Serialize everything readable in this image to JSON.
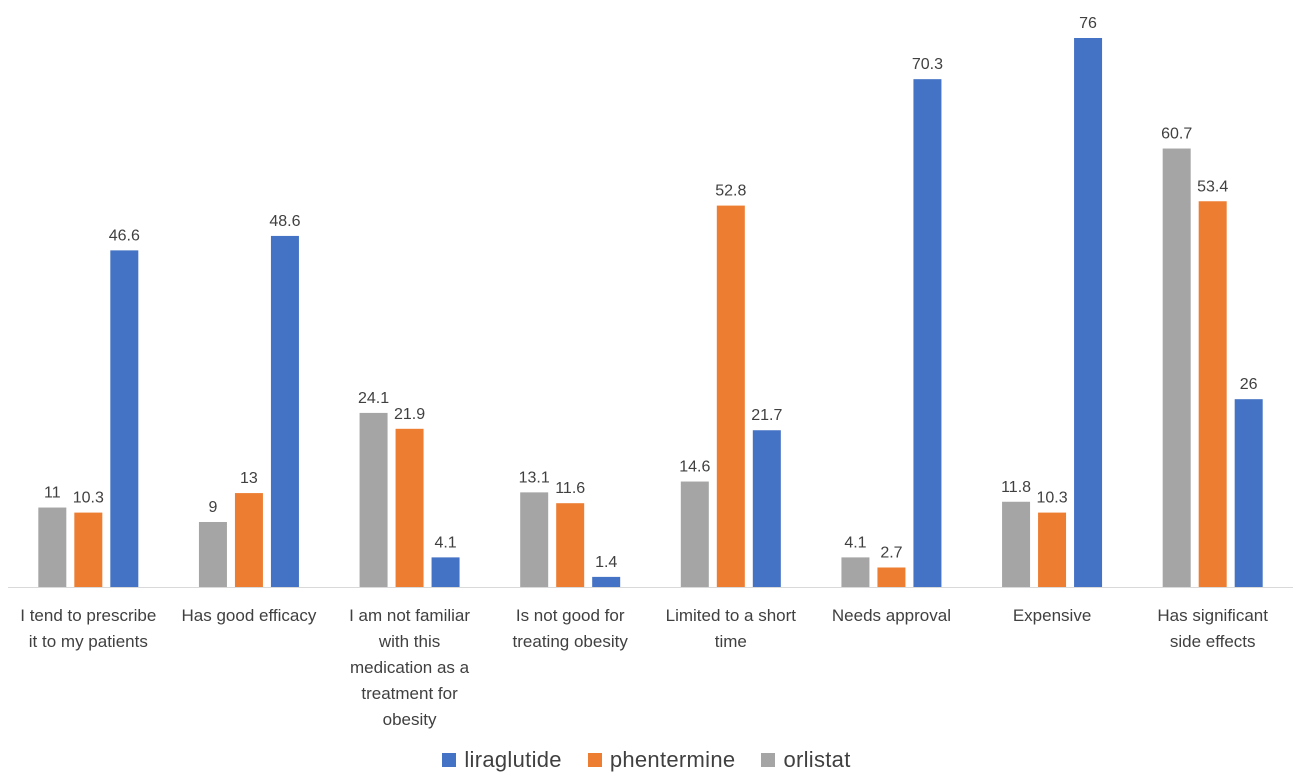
{
  "chart_data": {
    "type": "bar",
    "categories": [
      [
        "I tend to prescribe",
        "it to my patients"
      ],
      [
        "Has good efficacy"
      ],
      [
        "I am not familiar",
        "with this",
        "medication as a",
        "treatment for",
        "obesity"
      ],
      [
        "Is not good for",
        "treating obesity"
      ],
      [
        "Limited to a short",
        "time"
      ],
      [
        "Needs approval"
      ],
      [
        "Expensive"
      ],
      [
        "Has significant",
        "side effects"
      ]
    ],
    "series": [
      {
        "name": "orlistat",
        "color": "#A5A5A5",
        "values": [
          11,
          9,
          24.1,
          13.1,
          14.6,
          4.1,
          11.8,
          60.7
        ]
      },
      {
        "name": "phentermine",
        "color": "#ED7D31",
        "values": [
          10.3,
          13,
          21.9,
          11.6,
          52.8,
          2.7,
          10.3,
          53.4
        ]
      },
      {
        "name": "liraglutide",
        "color": "#4472C4",
        "values": [
          46.6,
          48.6,
          4.1,
          1.4,
          21.7,
          70.3,
          76,
          26
        ]
      }
    ],
    "legend_order": [
      "liraglutide",
      "phentermine",
      "orlistat"
    ],
    "ylim": [
      0,
      76
    ],
    "grid": false,
    "legend_position": "bottom"
  }
}
